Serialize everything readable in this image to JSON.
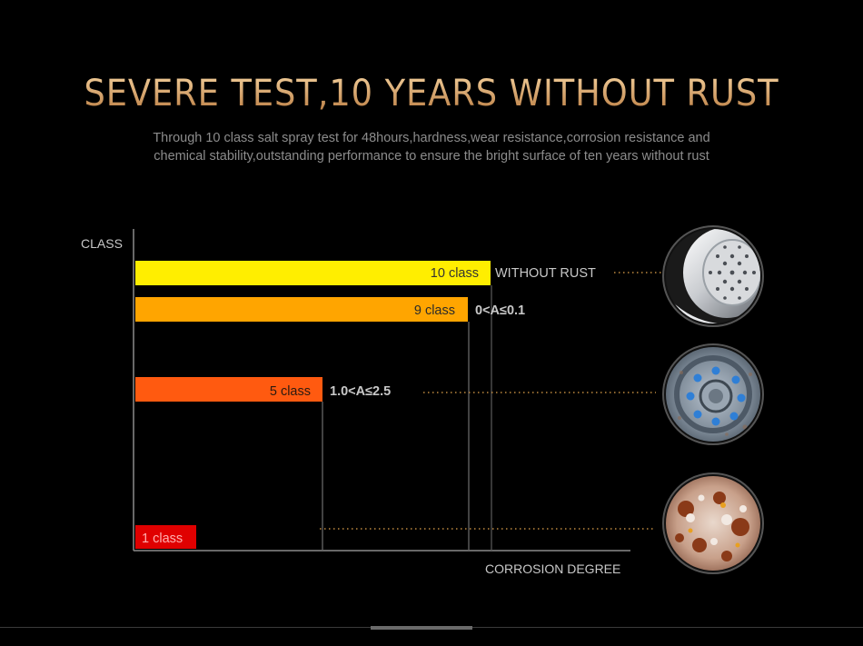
{
  "header": {
    "title": "SEVERE TEST,10 YEARS WITHOUT RUST",
    "subtitle_line1": "Through 10 class salt spray test for 48hours,hardness,wear resistance,corrosion resistance and",
    "subtitle_line2": "chemical stability,outstanding performance to ensure the bright surface of ten years without rust"
  },
  "chart_data": {
    "type": "bar",
    "orientation": "horizontal",
    "ylabel": "CLASS",
    "xlabel": "CORROSION DEGREE",
    "grid": false,
    "bars": [
      {
        "label": "10 class",
        "class": 10,
        "annotation": "WITHOUT RUST",
        "color": "#ffee00",
        "photo": "chrome-showerhead"
      },
      {
        "label": "9 class",
        "class": 9,
        "annotation": "0<A≤0.1",
        "color": "#ffa500",
        "photo": ""
      },
      {
        "label": "5 class",
        "class": 5,
        "annotation": "1.0<A≤2.5",
        "color": "#ff5a10",
        "photo": "blue-nozzle-showerhead"
      },
      {
        "label": "1 class",
        "class": 1,
        "annotation": "",
        "color": "#e00000",
        "photo": "rusted-surface"
      }
    ]
  },
  "colors": {
    "background": "#000000",
    "title_gold": "#d9a66a",
    "subtitle": "#8c8c8c",
    "axis": "#8a8a8a",
    "label_text": "#c8c8c8",
    "leader_dots": "#c08a40"
  }
}
